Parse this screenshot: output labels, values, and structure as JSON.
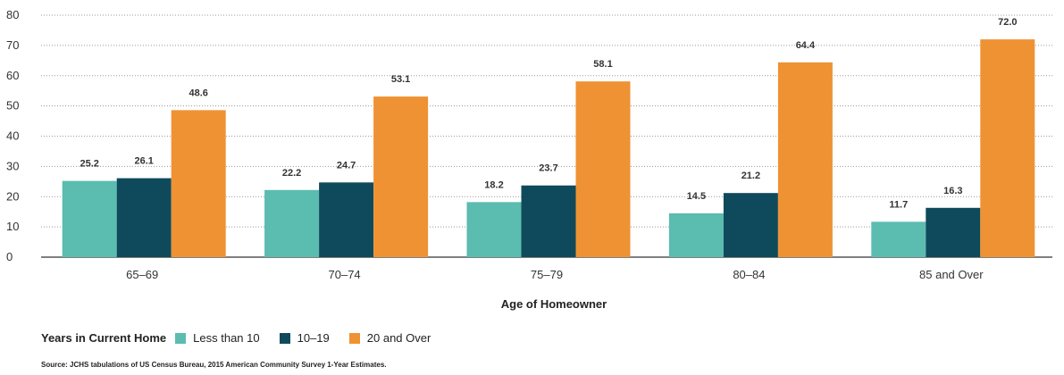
{
  "chart_data": {
    "type": "bar",
    "categories": [
      "65–69",
      "70–74",
      "75–79",
      "80–84",
      "85 and Over"
    ],
    "series": [
      {
        "name": "Less than 10",
        "color": "#5bbcb0",
        "values": [
          25.2,
          22.2,
          18.2,
          14.5,
          11.7
        ]
      },
      {
        "name": "10–19",
        "color": "#0f4a5c",
        "values": [
          26.1,
          24.7,
          23.7,
          21.2,
          16.3
        ]
      },
      {
        "name": "20 and Over",
        "color": "#ef9234",
        "values": [
          48.6,
          53.1,
          58.1,
          64.4,
          72.0
        ]
      }
    ],
    "xlabel": "Age of Homeowner",
    "ylabel": "",
    "ylim": [
      0,
      80
    ],
    "yticks": [
      0,
      10,
      20,
      30,
      40,
      50,
      60,
      70,
      80
    ],
    "grid": "horizontal-dotted",
    "legend_title": "Years in Current Home",
    "legend_position": "bottom-left",
    "source": "Source: JCHS tabulations of US Census Bureau, 2015 American Community Survey 1-Year Estimates."
  }
}
